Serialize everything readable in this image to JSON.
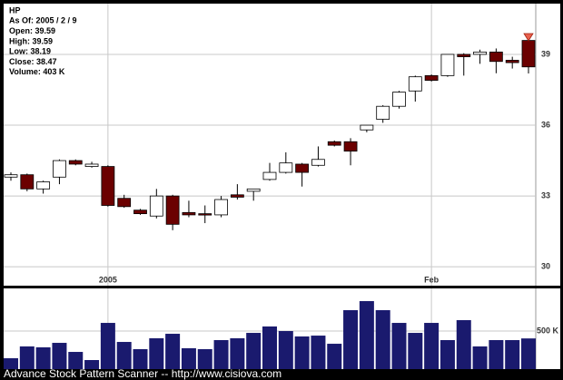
{
  "chart_data": {
    "type": "candlestick",
    "info": [
      "HP",
      "As Of: 2005 / 2 / 9",
      "Open: 39.59",
      "High: 39.59",
      "Low: 38.19",
      "Close: 38.47",
      "Volume: 403 K"
    ],
    "footer": "Advance Stock Pattern Scanner -- http://www.cisiova.com",
    "categories": [
      null,
      null,
      null,
      null,
      null,
      null,
      "2005",
      null,
      null,
      null,
      null,
      null,
      null,
      null,
      null,
      null,
      null,
      null,
      null,
      null,
      null,
      null,
      null,
      null,
      null,
      null,
      "Feb",
      null,
      null,
      null,
      null,
      null,
      null
    ],
    "open": [
      33.8,
      33.9,
      33.3,
      33.8,
      34.5,
      34.25,
      34.25,
      32.9,
      32.4,
      32.15,
      33.0,
      32.3,
      32.25,
      32.2,
      33.05,
      33.2,
      33.7,
      34.0,
      34.35,
      34.3,
      35.3,
      35.3,
      35.8,
      36.25,
      36.8,
      37.45,
      38.1,
      38.1,
      39.0,
      39.0,
      39.1,
      38.75,
      39.59
    ],
    "high": [
      34.0,
      33.95,
      33.65,
      34.55,
      34.55,
      34.45,
      34.3,
      33.05,
      32.45,
      33.3,
      33.05,
      32.8,
      32.6,
      33.0,
      33.5,
      33.3,
      34.4,
      34.85,
      34.4,
      35.1,
      35.35,
      35.45,
      36.0,
      36.85,
      37.45,
      38.1,
      38.15,
      39.0,
      39.05,
      39.2,
      39.25,
      38.9,
      39.59
    ],
    "low": [
      33.65,
      33.2,
      33.1,
      33.5,
      34.3,
      34.2,
      32.55,
      32.5,
      32.2,
      32.05,
      31.55,
      32.1,
      31.85,
      32.1,
      32.85,
      32.8,
      33.65,
      33.95,
      33.4,
      34.25,
      35.1,
      34.3,
      35.7,
      36.1,
      36.7,
      37.0,
      37.85,
      38.05,
      38.1,
      38.6,
      38.2,
      38.4,
      38.19
    ],
    "close": [
      33.9,
      33.3,
      33.6,
      34.5,
      34.35,
      34.35,
      32.6,
      32.55,
      32.25,
      33.0,
      31.8,
      32.2,
      32.2,
      32.85,
      32.95,
      33.3,
      34.0,
      34.4,
      34.0,
      34.55,
      35.15,
      34.9,
      36.0,
      36.8,
      37.4,
      38.05,
      37.9,
      39.0,
      38.9,
      39.1,
      38.7,
      38.65,
      38.47
    ],
    "up_color": "#ffffff",
    "down_color": "#6b0000",
    "ylim": [
      29.2,
      41.15
    ],
    "yticks": [
      30,
      33,
      36,
      39
    ],
    "grid": true,
    "volume": {
      "values": [
        143,
        298,
        286,
        345,
        226,
        119,
        607,
        357,
        262,
        405,
        464,
        274,
        262,
        381,
        405,
        476,
        560,
        500,
        429,
        440,
        333,
        774,
        893,
        774,
        607,
        476,
        607,
        381,
        643,
        298,
        381,
        381,
        403
      ],
      "color": "#1a1a6e",
      "ylim": [
        0,
        1060
      ],
      "yticks": [
        {
          "value": 500,
          "label": "500 K"
        }
      ]
    }
  }
}
